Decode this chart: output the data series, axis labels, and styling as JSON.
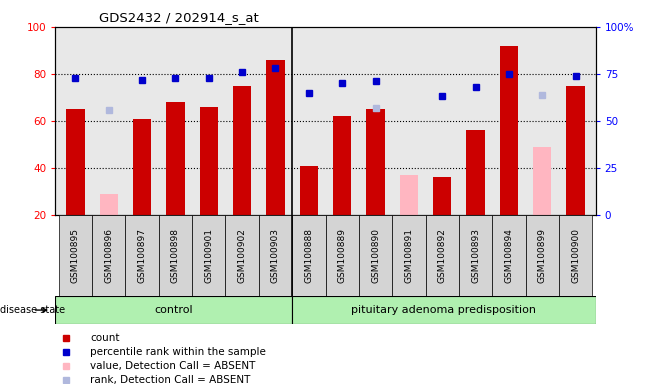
{
  "title": "GDS2432 / 202914_s_at",
  "samples": [
    "GSM100895",
    "GSM100896",
    "GSM100897",
    "GSM100898",
    "GSM100901",
    "GSM100902",
    "GSM100903",
    "GSM100888",
    "GSM100889",
    "GSM100890",
    "GSM100891",
    "GSM100892",
    "GSM100893",
    "GSM100894",
    "GSM100899",
    "GSM100900"
  ],
  "count": [
    65,
    null,
    61,
    68,
    66,
    75,
    86,
    41,
    62,
    65,
    37,
    36,
    56,
    92,
    null,
    75
  ],
  "percentile_rank": [
    73,
    null,
    72,
    73,
    73,
    76,
    78,
    65,
    70,
    71,
    null,
    63,
    68,
    75,
    null,
    74
  ],
  "absent_value": [
    null,
    29,
    null,
    null,
    null,
    null,
    null,
    null,
    null,
    null,
    37,
    null,
    null,
    null,
    49,
    null
  ],
  "absent_rank": [
    null,
    56,
    null,
    null,
    null,
    null,
    null,
    null,
    null,
    57,
    null,
    null,
    null,
    null,
    64,
    null
  ],
  "n_control": 7,
  "n_total": 16,
  "ylim_left": [
    20,
    100
  ],
  "ylim_right": [
    0,
    100
  ],
  "yticks_left": [
    20,
    40,
    60,
    80,
    100
  ],
  "ytick_labels_left": [
    "20",
    "40",
    "60",
    "80",
    "100"
  ],
  "yticks_right": [
    0,
    25,
    50,
    75,
    100
  ],
  "ytick_labels_right": [
    "0",
    "25",
    "50",
    "75",
    "100%"
  ],
  "bar_width": 0.55,
  "count_color": "#cc0000",
  "absent_value_color": "#ffb6c1",
  "percentile_color": "#0000cc",
  "absent_rank_color": "#b0b8dd",
  "legend_items": [
    {
      "label": "count",
      "color": "#cc0000"
    },
    {
      "label": "percentile rank within the sample",
      "color": "#0000cc"
    },
    {
      "label": "value, Detection Call = ABSENT",
      "color": "#ffb6c1"
    },
    {
      "label": "rank, Detection Call = ABSENT",
      "color": "#b0b8dd"
    }
  ],
  "disease_state_label": "disease state",
  "grid_color": "black",
  "background_plot": "#e8e8e8",
  "background_group": "#b0f0b0",
  "plot_bg": "#e8e8e8",
  "col_bg": "#d8d8d8"
}
